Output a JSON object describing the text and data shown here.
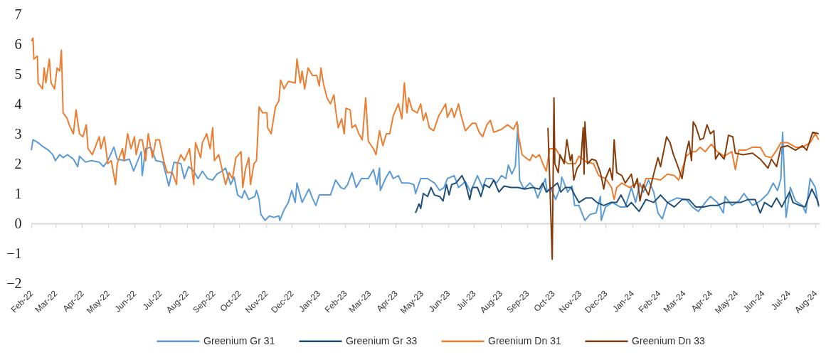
{
  "chart_data": {
    "type": "line",
    "legend": "bottom",
    "ylim": [
      -2,
      7
    ],
    "yticks": [
      -2,
      -1,
      0,
      1,
      2,
      3,
      4,
      5,
      6,
      7
    ],
    "xlim": [
      "2022-02-01",
      "2024-08-06"
    ],
    "xticks": [
      {
        "value": "2022-02-01",
        "label": "Feb-22"
      },
      {
        "value": "2022-03-01",
        "label": "Mar-22"
      },
      {
        "value": "2022-04-01",
        "label": "Apr-22"
      },
      {
        "value": "2022-05-01",
        "label": "May-22"
      },
      {
        "value": "2022-06-01",
        "label": "Jun-22"
      },
      {
        "value": "2022-07-01",
        "label": "Jul-22"
      },
      {
        "value": "2022-08-01",
        "label": "Aug-22"
      },
      {
        "value": "2022-09-01",
        "label": "Sep-22"
      },
      {
        "value": "2022-10-01",
        "label": "Oct-22"
      },
      {
        "value": "2022-11-01",
        "label": "Nov-22"
      },
      {
        "value": "2022-12-01",
        "label": "Dec-22"
      },
      {
        "value": "2023-01-01",
        "label": "Jan-23"
      },
      {
        "value": "2023-02-01",
        "label": "Feb-23"
      },
      {
        "value": "2023-03-01",
        "label": "Mar-23"
      },
      {
        "value": "2023-04-01",
        "label": "Apr-23"
      },
      {
        "value": "2023-05-01",
        "label": "May-23"
      },
      {
        "value": "2023-06-01",
        "label": "Jun-23"
      },
      {
        "value": "2023-07-01",
        "label": "Jul-23"
      },
      {
        "value": "2023-08-01",
        "label": "Aug-23"
      },
      {
        "value": "2023-09-01",
        "label": "Sep-23"
      },
      {
        "value": "2023-10-01",
        "label": "Oct-23"
      },
      {
        "value": "2023-11-01",
        "label": "Nov-23"
      },
      {
        "value": "2023-12-01",
        "label": "Dec-23"
      },
      {
        "value": "2024-01-01",
        "label": "Jan-24"
      },
      {
        "value": "2024-02-01",
        "label": "Feb-24"
      },
      {
        "value": "2024-03-01",
        "label": "Mar-24"
      },
      {
        "value": "2024-04-01",
        "label": "Apr-24"
      },
      {
        "value": "2024-05-01",
        "label": "May-24"
      },
      {
        "value": "2024-06-01",
        "label": "Jun-24"
      },
      {
        "value": "2024-07-01",
        "label": "Jul-24"
      },
      {
        "value": "2024-08-01",
        "label": "Aug-24"
      }
    ],
    "series": [
      {
        "name": "Greenium Gr 31",
        "color": "#5b9bd5",
        "x": [
          "2022-02-01",
          "2022-02-03",
          "2022-02-09",
          "2022-02-13",
          "2022-02-21",
          "2022-02-26",
          "2022-03-01",
          "2022-03-06",
          "2022-03-10",
          "2022-03-15",
          "2022-03-22",
          "2022-03-27",
          "2022-03-29",
          "2022-04-05",
          "2022-04-12",
          "2022-04-21",
          "2022-04-26",
          "2022-05-01",
          "2022-05-08",
          "2022-05-12",
          "2022-05-20",
          "2022-05-26",
          "2022-05-31",
          "2022-06-09",
          "2022-06-10",
          "2022-06-14",
          "2022-06-20",
          "2022-06-26",
          "2022-07-04",
          "2022-07-11",
          "2022-07-17",
          "2022-07-25",
          "2022-07-29",
          "2022-08-03",
          "2022-08-09",
          "2022-08-14",
          "2022-08-19",
          "2022-08-25",
          "2022-08-31",
          "2022-09-05",
          "2022-09-11",
          "2022-09-15",
          "2022-09-21",
          "2022-09-25",
          "2022-09-29",
          "2022-10-04",
          "2022-10-07",
          "2022-10-12",
          "2022-10-19",
          "2022-10-21",
          "2022-10-24",
          "2022-10-26",
          "2022-10-31",
          "2022-11-05",
          "2022-11-10",
          "2022-11-16",
          "2022-11-17",
          "2022-11-22",
          "2022-11-27",
          "2022-12-01",
          "2022-12-05",
          "2022-12-07",
          "2022-12-13",
          "2022-12-21",
          "2022-12-25",
          "2022-12-29",
          "2023-01-02",
          "2023-01-10",
          "2023-01-15",
          "2023-01-21",
          "2023-01-27",
          "2023-01-31",
          "2023-02-04",
          "2023-02-09",
          "2023-02-14",
          "2023-02-20",
          "2023-02-28",
          "2023-03-06",
          "2023-03-10",
          "2023-03-13",
          "2023-03-14",
          "2023-03-20",
          "2023-03-25",
          "2023-03-29",
          "2023-04-04",
          "2023-04-08",
          "2023-04-16",
          "2023-04-22",
          "2023-04-24",
          "2023-04-30",
          "2023-05-08",
          "2023-05-16",
          "2023-05-22",
          "2023-05-27",
          "2023-05-31",
          "2023-06-08",
          "2023-06-13",
          "2023-06-21",
          "2023-06-27",
          "2023-07-05",
          "2023-07-11",
          "2023-07-15",
          "2023-07-22",
          "2023-07-27",
          "2023-08-02",
          "2023-08-07",
          "2023-08-10",
          "2023-08-14",
          "2023-08-18",
          "2023-08-21",
          "2023-08-23",
          "2023-08-28",
          "2023-09-04",
          "2023-09-09",
          "2023-09-13",
          "2023-09-18",
          "2023-09-22",
          "2023-09-24",
          "2023-09-28",
          "2023-10-04",
          "2023-10-10",
          "2023-10-11",
          "2023-10-18",
          "2023-10-23",
          "2023-10-26",
          "2023-10-31",
          "2023-11-07",
          "2023-11-13",
          "2023-11-20",
          "2023-11-25",
          "2023-11-26",
          "2023-12-01",
          "2023-12-09",
          "2023-12-18",
          "2023-12-24",
          "2023-12-31",
          "2024-01-05",
          "2024-01-10",
          "2024-01-14",
          "2024-01-20",
          "2024-01-26",
          "2024-01-31",
          "2024-02-05",
          "2024-02-11",
          "2024-02-22",
          "2024-03-04",
          "2024-03-11",
          "2024-03-18",
          "2024-03-26",
          "2024-04-01",
          "2024-04-09",
          "2024-04-16",
          "2024-04-18",
          "2024-04-26",
          "2024-05-04",
          "2024-05-10",
          "2024-05-20",
          "2024-05-29",
          "2024-06-07",
          "2024-06-13",
          "2024-06-18",
          "2024-06-22",
          "2024-06-24",
          "2024-06-28",
          "2024-07-03",
          "2024-07-09",
          "2024-07-17",
          "2024-07-21",
          "2024-07-26",
          "2024-08-01",
          "2024-08-05"
        ],
        "values": [
          2.45,
          2.8,
          2.7,
          2.6,
          2.45,
          2.3,
          2.1,
          2.3,
          2.2,
          2.3,
          2.15,
          1.9,
          2.25,
          2.05,
          2.1,
          2.05,
          1.9,
          2.1,
          2.55,
          2.15,
          2.1,
          2.15,
          1.75,
          2.4,
          1.6,
          2.5,
          2.55,
          2.1,
          2.05,
          1.25,
          2.05,
          2.0,
          1.5,
          1.9,
          1.75,
          1.5,
          1.75,
          1.5,
          1.45,
          1.65,
          1.75,
          1.85,
          1.3,
          1.55,
          0.95,
          0.85,
          1.1,
          0.8,
          0.9,
          1.1,
          0.8,
          0.3,
          0.1,
          0.25,
          0.2,
          0.25,
          0.1,
          0.45,
          0.7,
          1.1,
          0.7,
          1.35,
          0.7,
          1.15,
          0.85,
          0.6,
          0.95,
          0.95,
          0.95,
          1.45,
          1.2,
          1.15,
          1.3,
          1.7,
          1.2,
          1.5,
          1.5,
          1.8,
          1.3,
          1.85,
          1.1,
          1.5,
          1.75,
          1.5,
          1.6,
          1.35,
          1.35,
          1.3,
          1.0,
          1.5,
          1.5,
          1.35,
          1.1,
          1.2,
          1.5,
          1.6,
          1.2,
          1.4,
          1.05,
          1.6,
          1.2,
          1.5,
          1.5,
          1.35,
          1.6,
          1.5,
          1.95,
          1.65,
          1.9,
          3.3,
          1.45,
          1.15,
          1.35,
          1.2,
          0.85,
          1.2,
          1.5,
          1.05,
          1.2,
          0.8,
          1.25,
          1.55,
          1.05,
          1.25,
          0.6,
          0.6,
          0.1,
          0.3,
          0.35,
          0.9,
          0.1,
          0.55,
          0.7,
          0.55,
          0.55,
          1.2,
          0.7,
          1.35,
          1.05,
          1.45,
          1.05,
          0.35,
          0.15,
          0.7,
          0.85,
          0.8,
          0.55,
          0.4,
          0.7,
          0.9,
          0.7,
          0.35,
          0.9,
          0.6,
          0.75,
          1.0,
          0.6,
          0.75,
          1.0,
          1.35,
          1.1,
          1.5,
          3.05,
          0.2,
          1.2,
          0.75,
          0.6,
          0.35,
          1.5,
          1.2,
          0.55
        ]
      },
      {
        "name": "Greenium Gr 33",
        "color": "#1f4e79",
        "x": [
          "2023-04-24",
          "2023-04-28",
          "2023-04-30",
          "2023-05-03",
          "2023-05-08",
          "2023-05-12",
          "2023-05-16",
          "2023-05-22",
          "2023-05-26",
          "2023-05-30",
          "2023-06-02",
          "2023-06-05",
          "2023-06-10",
          "2023-06-17",
          "2023-06-21",
          "2023-06-26",
          "2023-06-29",
          "2023-07-05",
          "2023-07-09",
          "2023-07-13",
          "2023-07-19",
          "2023-07-24",
          "2023-07-30",
          "2023-08-05",
          "2023-08-13",
          "2023-08-21",
          "2023-08-29",
          "2023-09-07",
          "2023-09-15",
          "2023-09-19",
          "2023-09-23",
          "2023-09-30",
          "2023-10-06",
          "2023-10-10",
          "2023-10-15",
          "2023-10-22",
          "2023-10-26",
          "2023-10-31",
          "2023-11-08",
          "2023-11-15",
          "2023-11-21",
          "2023-11-29",
          "2023-12-07",
          "2023-12-14",
          "2023-12-19",
          "2023-12-26",
          "2023-12-31",
          "2024-01-09",
          "2024-01-17",
          "2024-01-26",
          "2024-02-03",
          "2024-02-11",
          "2024-02-19",
          "2024-02-28",
          "2024-03-07",
          "2024-03-15",
          "2024-03-24",
          "2024-04-01",
          "2024-04-09",
          "2024-04-17",
          "2024-04-26",
          "2024-05-06",
          "2024-05-15",
          "2024-05-23",
          "2024-05-29",
          "2024-06-03",
          "2024-06-11",
          "2024-06-17",
          "2024-06-23",
          "2024-07-02",
          "2024-07-06",
          "2024-07-14",
          "2024-07-20",
          "2024-07-28",
          "2024-08-03",
          "2024-08-05"
        ],
        "values": [
          0.35,
          0.65,
          0.5,
          1.0,
          0.9,
          1.2,
          0.95,
          0.9,
          0.75,
          1.3,
          0.95,
          1.3,
          1.35,
          1.6,
          1.35,
          0.8,
          1.2,
          1.2,
          0.9,
          1.3,
          1.2,
          1.45,
          1.05,
          1.25,
          1.2,
          1.2,
          1.15,
          1.2,
          1.15,
          1.35,
          1.05,
          1.2,
          1.35,
          1.05,
          1.2,
          1.2,
          0.95,
          0.7,
          0.85,
          0.85,
          0.7,
          0.6,
          0.7,
          0.7,
          0.95,
          0.55,
          0.7,
          0.4,
          0.8,
          0.7,
          0.95,
          0.7,
          0.55,
          0.8,
          0.8,
          0.55,
          0.55,
          0.6,
          0.6,
          0.7,
          0.7,
          0.7,
          0.8,
          0.8,
          0.35,
          0.7,
          0.55,
          0.85,
          0.55,
          1.05,
          0.7,
          0.6,
          0.55,
          1.15,
          0.8,
          0.6
        ]
      },
      {
        "name": "Greenium Dn 31",
        "color": "#ed7d31",
        "x": [
          "2022-02-01",
          "2022-02-03",
          "2022-02-04",
          "2022-02-08",
          "2022-02-09",
          "2022-02-14",
          "2022-02-16",
          "2022-02-18",
          "2022-02-22",
          "2022-02-24",
          "2022-02-28",
          "2022-03-03",
          "2022-03-06",
          "2022-03-08",
          "2022-03-10",
          "2022-03-15",
          "2022-03-17",
          "2022-03-22",
          "2022-03-25",
          "2022-03-29",
          "2022-04-02",
          "2022-04-06",
          "2022-04-08",
          "2022-04-13",
          "2022-04-21",
          "2022-04-23",
          "2022-04-27",
          "2022-05-01",
          "2022-05-05",
          "2022-05-10",
          "2022-05-12",
          "2022-05-18",
          "2022-05-20",
          "2022-05-24",
          "2022-05-28",
          "2022-06-01",
          "2022-06-03",
          "2022-06-07",
          "2022-06-10",
          "2022-06-14",
          "2022-06-17",
          "2022-06-22",
          "2022-06-26",
          "2022-06-30",
          "2022-07-05",
          "2022-07-09",
          "2022-07-15",
          "2022-07-20",
          "2022-07-21",
          "2022-07-25",
          "2022-07-29",
          "2022-08-04",
          "2022-08-09",
          "2022-08-11",
          "2022-08-17",
          "2022-08-19",
          "2022-08-24",
          "2022-08-28",
          "2022-08-31",
          "2022-09-02",
          "2022-09-07",
          "2022-09-11",
          "2022-09-15",
          "2022-09-19",
          "2022-09-23",
          "2022-09-27",
          "2022-10-03",
          "2022-10-05",
          "2022-10-08",
          "2022-10-12",
          "2022-10-14",
          "2022-10-18",
          "2022-10-21",
          "2022-10-24",
          "2022-10-28",
          "2022-11-02",
          "2022-11-03",
          "2022-11-07",
          "2022-11-12",
          "2022-11-16",
          "2022-11-18",
          "2022-11-22",
          "2022-11-27",
          "2022-12-05",
          "2022-12-07",
          "2022-12-11",
          "2022-12-13",
          "2022-12-16",
          "2022-12-20",
          "2022-12-25",
          "2022-12-30",
          "2023-01-02",
          "2023-01-04",
          "2023-01-07",
          "2023-01-11",
          "2023-01-15",
          "2023-01-19",
          "2023-01-21",
          "2023-01-24",
          "2023-01-28",
          "2023-01-31",
          "2023-02-02",
          "2023-02-07",
          "2023-02-09",
          "2023-02-13",
          "2023-02-17",
          "2023-02-21",
          "2023-02-25",
          "2023-02-28",
          "2023-03-06",
          "2023-03-09",
          "2023-03-13",
          "2023-03-17",
          "2023-03-21",
          "2023-03-25",
          "2023-03-29",
          "2023-04-04",
          "2023-04-08",
          "2023-04-11",
          "2023-04-14",
          "2023-04-16",
          "2023-04-20",
          "2023-04-26",
          "2023-04-30",
          "2023-05-03",
          "2023-05-06",
          "2023-05-10",
          "2023-05-15",
          "2023-05-21",
          "2023-05-25",
          "2023-05-29",
          "2023-05-31",
          "2023-06-05",
          "2023-06-08",
          "2023-06-13",
          "2023-06-16",
          "2023-06-21",
          "2023-06-29",
          "2023-07-03",
          "2023-07-07",
          "2023-07-11",
          "2023-07-16",
          "2023-07-20",
          "2023-07-24",
          "2023-08-02",
          "2023-08-09",
          "2023-08-16",
          "2023-08-20",
          "2023-08-22",
          "2023-08-26",
          "2023-08-30",
          "2023-09-04",
          "2023-09-07",
          "2023-09-11",
          "2023-09-15",
          "2023-09-19",
          "2023-09-23",
          "2023-09-27",
          "2023-10-04",
          "2023-10-10",
          "2023-10-18",
          "2023-10-27",
          "2023-10-31",
          "2023-11-09",
          "2023-11-17",
          "2023-11-23",
          "2023-12-01",
          "2023-12-08",
          "2023-12-11",
          "2023-12-14",
          "2023-12-20",
          "2023-12-29",
          "2024-01-06",
          "2024-01-14",
          "2024-01-17",
          "2024-01-26",
          "2024-02-03",
          "2024-02-11",
          "2024-02-19",
          "2024-02-24",
          "2024-03-04",
          "2024-03-10",
          "2024-03-15",
          "2024-03-20",
          "2024-03-26",
          "2024-04-02",
          "2024-04-09",
          "2024-04-17",
          "2024-04-26",
          "2024-04-30",
          "2024-05-04",
          "2024-05-12",
          "2024-05-20",
          "2024-05-29",
          "2024-06-04",
          "2024-06-11",
          "2024-06-17",
          "2024-06-22",
          "2024-06-30",
          "2024-07-09",
          "2024-07-17",
          "2024-07-26",
          "2024-08-01",
          "2024-08-05"
        ],
        "values": [
          6.1,
          6.2,
          5.5,
          5.6,
          4.7,
          4.5,
          5.2,
          4.7,
          5.5,
          4.7,
          4.5,
          5.2,
          5.1,
          5.8,
          3.7,
          3.5,
          3.3,
          3.0,
          3.8,
          3.0,
          2.9,
          3.3,
          2.5,
          2.3,
          2.9,
          2.5,
          2.9,
          2.0,
          2.1,
          1.3,
          2.0,
          2.5,
          2.1,
          3.0,
          2.5,
          2.9,
          2.3,
          2.8,
          2.8,
          2.1,
          3.0,
          2.2,
          2.8,
          2.8,
          2.1,
          1.7,
          1.7,
          1.3,
          2.0,
          2.3,
          2.1,
          2.5,
          1.3,
          2.7,
          2.2,
          2.7,
          3.0,
          2.5,
          3.2,
          2.1,
          2.3,
          1.8,
          1.3,
          1.7,
          1.5,
          2.2,
          2.4,
          1.2,
          1.8,
          2.2,
          1.3,
          2.0,
          2.1,
          3.9,
          3.7,
          3.7,
          3.2,
          3.0,
          3.9,
          4.1,
          4.8,
          4.5,
          4.75,
          4.7,
          5.5,
          4.7,
          5.1,
          4.5,
          5.2,
          4.95,
          4.95,
          4.6,
          5.2,
          4.65,
          4.2,
          4.0,
          4.3,
          3.8,
          3.2,
          3.5,
          3.0,
          3.85,
          3.8,
          3.2,
          3.3,
          3.0,
          2.8,
          4.2,
          2.75,
          2.5,
          2.3,
          3.1,
          2.6,
          3.0,
          3.0,
          3.6,
          4.0,
          3.5,
          4.7,
          3.7,
          4.2,
          3.8,
          3.7,
          4.0,
          3.45,
          3.7,
          3.2,
          3.1,
          3.6,
          3.8,
          4.0,
          3.55,
          3.85,
          3.55,
          4.0,
          3.6,
          3.1,
          3.35,
          3.35,
          3.05,
          2.9,
          3.3,
          3.45,
          3.05,
          3.15,
          3.3,
          3.15,
          3.4,
          2.9,
          2.3,
          2.2,
          2.1,
          2.3,
          2.2,
          2.3,
          2.0,
          1.75,
          2.5,
          2.5,
          2.2,
          2.0,
          2.0,
          2.25,
          2.05,
          2.0,
          1.6,
          1.5,
          1.2,
          0.8,
          1.2,
          1.35,
          1.2,
          1.35,
          1.2,
          1.5,
          1.5,
          1.45,
          1.65,
          1.6,
          1.45,
          2.25,
          2.4,
          2.4,
          2.55,
          2.4,
          2.65,
          2.4,
          2.25,
          2.4,
          1.8,
          2.45,
          2.45,
          2.55,
          2.55,
          2.25,
          2.2,
          2.45,
          2.7,
          2.7,
          2.55,
          2.55,
          2.7,
          3.0,
          2.8
        ]
      },
      {
        "name": "Greenium Dn 33",
        "color": "#843c0c",
        "x": [
          "2023-09-25",
          "2023-09-27",
          "2023-09-30",
          "2023-10-02",
          "2023-10-03",
          "2023-10-07",
          "2023-10-09",
          "2023-10-14",
          "2023-10-17",
          "2023-10-21",
          "2023-10-23",
          "2023-10-25",
          "2023-10-29",
          "2023-11-02",
          "2023-11-05",
          "2023-11-06",
          "2023-11-07",
          "2023-11-10",
          "2023-11-15",
          "2023-11-20",
          "2023-11-25",
          "2023-11-29",
          "2023-12-01",
          "2023-12-06",
          "2023-12-09",
          "2023-12-11",
          "2023-12-14",
          "2023-12-20",
          "2023-12-24",
          "2023-12-31",
          "2024-01-03",
          "2024-01-07",
          "2024-01-10",
          "2024-01-14",
          "2024-01-20",
          "2024-01-26",
          "2024-01-31",
          "2024-02-03",
          "2024-02-10",
          "2024-02-14",
          "2024-02-18",
          "2024-02-22",
          "2024-02-28",
          "2024-03-04",
          "2024-03-07",
          "2024-03-10",
          "2024-03-12",
          "2024-03-15",
          "2024-03-20",
          "2024-03-24",
          "2024-03-28",
          "2024-04-01",
          "2024-04-05",
          "2024-04-07",
          "2024-04-11",
          "2024-04-17",
          "2024-04-22",
          "2024-04-27",
          "2024-04-30",
          "2024-05-09",
          "2024-05-20",
          "2024-05-29",
          "2024-06-07",
          "2024-06-11",
          "2024-06-17",
          "2024-06-22",
          "2024-06-30",
          "2024-07-09",
          "2024-07-17",
          "2024-07-22",
          "2024-07-29",
          "2024-08-05"
        ],
        "values": [
          3.2,
          1.5,
          -1.2,
          4.2,
          2.0,
          1.7,
          2.3,
          2.0,
          2.8,
          2.1,
          2.3,
          1.45,
          1.85,
          2.0,
          3.2,
          1.65,
          3.4,
          2.0,
          2.15,
          2.1,
          1.7,
          1.15,
          1.5,
          1.85,
          1.45,
          2.8,
          1.7,
          1.6,
          1.35,
          1.65,
          1.2,
          1.5,
          0.75,
          1.3,
          0.95,
          1.65,
          2.2,
          1.9,
          2.9,
          2.7,
          2.3,
          2.0,
          1.5,
          2.4,
          2.75,
          2.1,
          3.4,
          3.25,
          2.8,
          2.85,
          3.3,
          3.0,
          3.1,
          2.15,
          2.35,
          2.15,
          2.95,
          2.9,
          2.35,
          2.3,
          2.35,
          2.15,
          1.85,
          2.15,
          1.9,
          2.55,
          2.6,
          2.45,
          2.6,
          2.45,
          3.05,
          3.0
        ]
      }
    ]
  }
}
